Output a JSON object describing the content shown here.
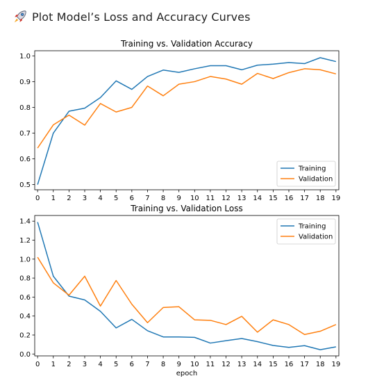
{
  "header": {
    "title": "Plot Model’s Loss and Accuracy Curves",
    "icon": "rocket-icon"
  },
  "colors": {
    "training": "#1f77b4",
    "validation": "#ff7f0e"
  },
  "chart_data": [
    {
      "type": "line",
      "title": "Training vs. Validation Accuracy",
      "xlabel": "",
      "ylabel": "",
      "x": [
        0,
        1,
        2,
        3,
        4,
        5,
        6,
        7,
        8,
        9,
        10,
        11,
        12,
        13,
        14,
        15,
        16,
        17,
        18,
        19
      ],
      "xticks": [
        "0",
        "1",
        "2",
        "3",
        "4",
        "5",
        "6",
        "7",
        "8",
        "9",
        "10",
        "11",
        "12",
        "13",
        "14",
        "15",
        "16",
        "17",
        "18",
        "19"
      ],
      "yticks": [
        "0.5",
        "0.6",
        "0.7",
        "0.8",
        "0.9",
        "1.0"
      ],
      "ylim": [
        0.48,
        1.02
      ],
      "legend_position": "lower-right",
      "series": [
        {
          "name": "Training",
          "color": "#1f77b4",
          "values": [
            0.5,
            0.7,
            0.785,
            0.797,
            0.838,
            0.903,
            0.87,
            0.92,
            0.945,
            0.936,
            0.95,
            0.962,
            0.962,
            0.946,
            0.964,
            0.968,
            0.974,
            0.97,
            0.993,
            0.978
          ]
        },
        {
          "name": "Validation",
          "color": "#ff7f0e",
          "values": [
            0.642,
            0.732,
            0.77,
            0.731,
            0.815,
            0.782,
            0.8,
            0.883,
            0.845,
            0.89,
            0.9,
            0.92,
            0.91,
            0.89,
            0.932,
            0.912,
            0.935,
            0.95,
            0.946,
            0.93
          ]
        }
      ]
    },
    {
      "type": "line",
      "title": "Training vs. Validation Loss",
      "xlabel": "epoch",
      "ylabel": "",
      "x": [
        0,
        1,
        2,
        3,
        4,
        5,
        6,
        7,
        8,
        9,
        10,
        11,
        12,
        13,
        14,
        15,
        16,
        17,
        18,
        19
      ],
      "xticks": [
        "0",
        "1",
        "2",
        "3",
        "4",
        "5",
        "6",
        "7",
        "8",
        "9",
        "10",
        "11",
        "12",
        "13",
        "14",
        "15",
        "16",
        "17",
        "18",
        "19"
      ],
      "yticks": [
        "0.0",
        "0.2",
        "0.4",
        "0.6",
        "0.8",
        "1.0",
        "1.2",
        "1.4"
      ],
      "ylim": [
        -0.02,
        1.46
      ],
      "legend_position": "upper-right",
      "series": [
        {
          "name": "Training",
          "color": "#1f77b4",
          "values": [
            1.39,
            0.82,
            0.61,
            0.57,
            0.45,
            0.275,
            0.365,
            0.245,
            0.18,
            0.18,
            0.175,
            0.115,
            0.14,
            0.163,
            0.13,
            0.09,
            0.07,
            0.088,
            0.045,
            0.075
          ]
        },
        {
          "name": "Validation",
          "color": "#ff7f0e",
          "values": [
            1.02,
            0.75,
            0.62,
            0.82,
            0.505,
            0.775,
            0.525,
            0.33,
            0.49,
            0.498,
            0.36,
            0.355,
            0.31,
            0.397,
            0.23,
            0.36,
            0.31,
            0.205,
            0.24,
            0.31
          ]
        }
      ]
    }
  ]
}
